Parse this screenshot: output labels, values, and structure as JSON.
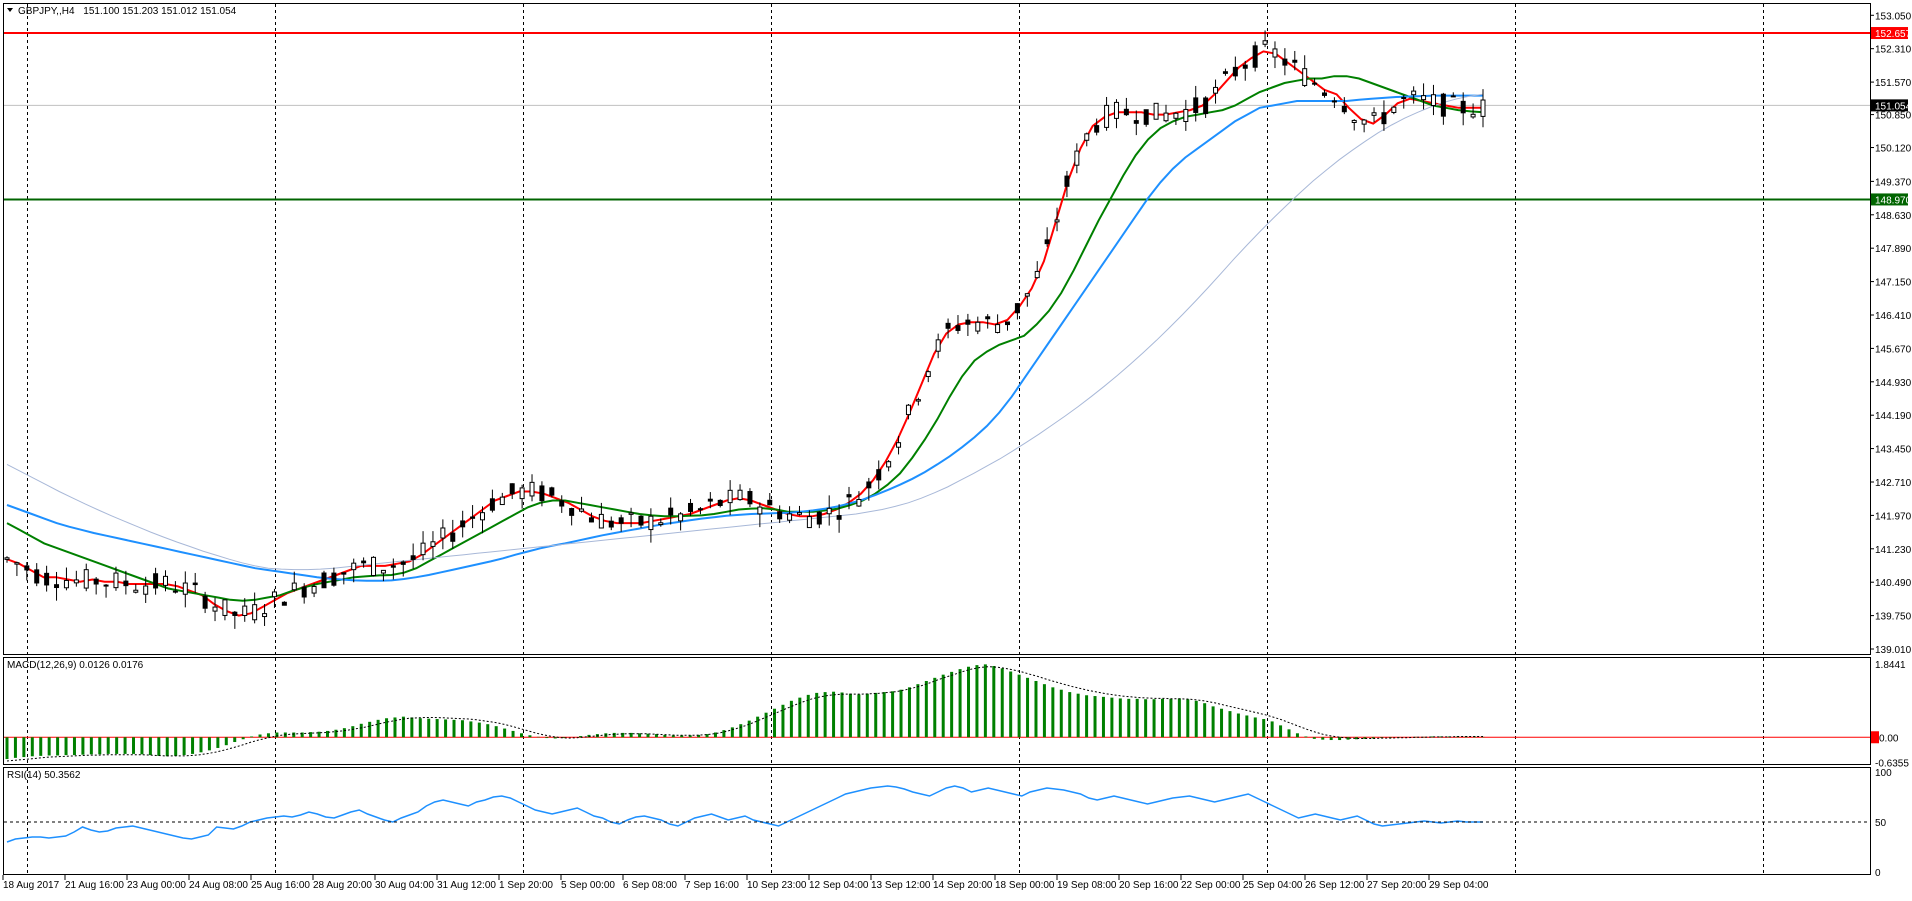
{
  "chart_data": {
    "type": "candlestick",
    "symbol_header": "GBPJPY,,H4",
    "ohlc_text": "151.100 151.203 151.012 151.054",
    "main": {
      "y_ticks": [
        "153.050",
        "152.310",
        "151.570",
        "150.850",
        "150.120",
        "149.370",
        "148.630",
        "147.890",
        "147.150",
        "146.410",
        "145.670",
        "144.930",
        "144.190",
        "143.450",
        "142.710",
        "141.970",
        "141.230",
        "140.490",
        "139.750",
        "139.010"
      ],
      "ylim": [
        139.01,
        153.3
      ],
      "levels": [
        {
          "label": "152.657",
          "value": 152.657,
          "color": "#ff0000"
        },
        {
          "label": "148.970",
          "value": 148.97,
          "color": "#006400"
        }
      ],
      "current_price": {
        "label": "151.054",
        "value": 151.054,
        "color": "#000000"
      },
      "candles": [],
      "ma_lines": [
        {
          "color": "#ff0000",
          "values": [
            141.0,
            140.9,
            140.75,
            140.6,
            140.6,
            140.55,
            140.5,
            140.55,
            140.5,
            140.5,
            140.45,
            140.45,
            140.45,
            140.45,
            140.4,
            140.3,
            140.2,
            140.0,
            139.85,
            139.75,
            139.8,
            139.95,
            140.1,
            140.25,
            140.35,
            140.45,
            140.55,
            140.65,
            140.75,
            140.85,
            140.85,
            140.85,
            140.9,
            140.95,
            141.1,
            141.3,
            141.5,
            141.7,
            141.9,
            142.1,
            142.3,
            142.4,
            142.5,
            142.5,
            142.45,
            142.35,
            142.25,
            142.1,
            141.95,
            141.85,
            141.8,
            141.8,
            141.8,
            141.85,
            141.9,
            141.95,
            142.0,
            142.1,
            142.2,
            142.3,
            142.35,
            142.3,
            142.2,
            142.1,
            142.0,
            141.95,
            141.95,
            142.0,
            142.1,
            142.25,
            142.45,
            142.75,
            143.15,
            143.65,
            144.25,
            144.9,
            145.55,
            146.0,
            146.2,
            146.25,
            146.25,
            146.2,
            146.3,
            146.6,
            147.0,
            147.6,
            148.5,
            149.4,
            150.1,
            150.6,
            150.8,
            150.9,
            150.9,
            150.9,
            150.85,
            150.85,
            150.9,
            150.95,
            151.05,
            151.3,
            151.6,
            151.9,
            152.1,
            152.25,
            152.2,
            152.0,
            151.8,
            151.6,
            151.4,
            151.3,
            151.0,
            150.75,
            150.65,
            150.85,
            151.1,
            151.2,
            151.15,
            151.1,
            151.05,
            151.0,
            151.0,
            151.0
          ]
        },
        {
          "color": "#008000",
          "values": [
            141.8,
            141.65,
            141.5,
            141.35,
            141.25,
            141.15,
            141.05,
            140.95,
            140.85,
            140.75,
            140.65,
            140.55,
            140.45,
            140.35,
            140.3,
            140.25,
            140.2,
            140.15,
            140.1,
            140.08,
            140.1,
            140.15,
            140.2,
            140.3,
            140.38,
            140.45,
            140.5,
            140.55,
            140.6,
            140.62,
            140.64,
            140.65,
            140.7,
            140.8,
            140.95,
            141.1,
            141.25,
            141.4,
            141.55,
            141.7,
            141.85,
            142.0,
            142.15,
            142.25,
            142.3,
            142.3,
            142.25,
            142.2,
            142.15,
            142.1,
            142.05,
            142.0,
            141.97,
            141.95,
            141.95,
            141.96,
            141.97,
            142.0,
            142.05,
            142.1,
            142.12,
            142.13,
            142.1,
            142.05,
            142.05,
            142.05,
            142.08,
            142.12,
            142.2,
            142.3,
            142.45,
            142.65,
            142.9,
            143.25,
            143.65,
            144.1,
            144.6,
            145.05,
            145.4,
            145.6,
            145.75,
            145.85,
            145.95,
            146.2,
            146.5,
            146.9,
            147.4,
            147.95,
            148.5,
            149.0,
            149.5,
            149.95,
            150.3,
            150.55,
            150.7,
            150.8,
            150.85,
            150.9,
            150.95,
            151.05,
            151.2,
            151.35,
            151.45,
            151.55,
            151.6,
            151.65,
            151.65,
            151.7,
            151.7,
            151.65,
            151.55,
            151.45,
            151.35,
            151.25,
            151.15,
            151.05,
            151.0,
            150.95,
            150.92,
            150.9
          ]
        },
        {
          "color": "#1e90ff",
          "values": [
            142.2,
            142.1,
            142.0,
            141.9,
            141.8,
            141.72,
            141.65,
            141.58,
            141.52,
            141.46,
            141.4,
            141.34,
            141.28,
            141.22,
            141.16,
            141.1,
            141.04,
            140.98,
            140.92,
            140.86,
            140.8,
            140.76,
            140.72,
            140.68,
            140.64,
            140.6,
            140.57,
            140.55,
            140.53,
            140.52,
            140.52,
            140.53,
            140.56,
            140.6,
            140.65,
            140.71,
            140.77,
            140.83,
            140.89,
            140.95,
            141.02,
            141.1,
            141.17,
            141.24,
            141.3,
            141.35,
            141.41,
            141.47,
            141.53,
            141.58,
            141.63,
            141.68,
            141.73,
            141.78,
            141.82,
            141.86,
            141.9,
            141.93,
            141.96,
            141.98,
            142.0,
            142.01,
            142.02,
            142.03,
            142.05,
            142.08,
            142.12,
            142.17,
            142.24,
            142.32,
            142.42,
            142.53,
            142.65,
            142.78,
            142.93,
            143.1,
            143.28,
            143.48,
            143.7,
            143.95,
            144.25,
            144.6,
            145.0,
            145.4,
            145.8,
            146.2,
            146.6,
            147.0,
            147.4,
            147.8,
            148.2,
            148.6,
            149.0,
            149.35,
            149.65,
            149.9,
            150.1,
            150.3,
            150.5,
            150.7,
            150.85,
            151.0,
            151.05,
            151.1,
            151.15,
            151.15,
            151.15,
            151.15,
            151.15,
            151.18,
            151.2,
            151.22,
            151.24,
            151.25,
            151.26,
            151.27,
            151.27,
            151.27,
            151.27,
            151.27
          ]
        },
        {
          "color": "#a8b8d8",
          "values": [
            143.1,
            142.95,
            142.8,
            142.65,
            142.5,
            142.36,
            142.22,
            142.09,
            141.96,
            141.84,
            141.72,
            141.6,
            141.49,
            141.38,
            141.28,
            141.18,
            141.09,
            141.0,
            140.92,
            140.85,
            140.8,
            140.78,
            140.77,
            140.77,
            140.78,
            140.8,
            140.83,
            140.86,
            140.89,
            140.92,
            140.95,
            140.98,
            141.01,
            141.04,
            141.07,
            141.1,
            141.13,
            141.16,
            141.19,
            141.22,
            141.25,
            141.28,
            141.31,
            141.34,
            141.37,
            141.4,
            141.43,
            141.46,
            141.49,
            141.52,
            141.55,
            141.58,
            141.61,
            141.64,
            141.67,
            141.7,
            141.73,
            141.76,
            141.79,
            141.82,
            141.85,
            141.88,
            141.91,
            141.94,
            141.97,
            142.0,
            142.05,
            142.1,
            142.17,
            142.25,
            142.35,
            142.47,
            142.6,
            142.75,
            142.9,
            143.06,
            143.22,
            143.4,
            143.58,
            143.77,
            143.97,
            144.17,
            144.38,
            144.6,
            144.83,
            145.07,
            145.32,
            145.58,
            145.85,
            146.13,
            146.42,
            146.72,
            147.03,
            147.35,
            147.67,
            147.98,
            148.28,
            148.57,
            148.85,
            149.12,
            149.38,
            149.62,
            149.85,
            150.06,
            150.26,
            150.45,
            150.62,
            150.77,
            150.9,
            151.02,
            151.12,
            151.2,
            151.26,
            151.3
          ]
        }
      ]
    },
    "macd": {
      "label": "MACD(12,26,9) 0.0126 0.0176",
      "y_ticks": [
        "1.8441",
        "0.00",
        "-0.6355"
      ],
      "ylim": [
        -0.7,
        1.95
      ],
      "histogram": [
        -0.55,
        -0.52,
        -0.5,
        -0.48,
        -0.47,
        -0.46,
        -0.46,
        -0.45,
        -0.45,
        -0.44,
        -0.43,
        -0.43,
        -0.42,
        -0.42,
        -0.42,
        -0.42,
        -0.43,
        -0.45,
        -0.47,
        -0.48,
        -0.47,
        -0.45,
        -0.42,
        -0.38,
        -0.33,
        -0.27,
        -0.2,
        -0.12,
        -0.05,
        0.02,
        0.07,
        0.1,
        0.12,
        0.12,
        0.12,
        0.12,
        0.13,
        0.14,
        0.16,
        0.19,
        0.23,
        0.28,
        0.34,
        0.39,
        0.44,
        0.48,
        0.5,
        0.52,
        0.5,
        0.48,
        0.47,
        0.46,
        0.45,
        0.44,
        0.43,
        0.4,
        0.37,
        0.33,
        0.28,
        0.22,
        0.16,
        0.1,
        0.05,
        0.01,
        -0.02,
        -0.03,
        -0.02,
        0.0,
        0.03,
        0.06,
        0.08,
        0.1,
        0.11,
        0.11,
        0.11,
        0.1,
        0.09,
        0.08,
        0.06,
        0.05,
        0.05,
        0.05,
        0.06,
        0.08,
        0.12,
        0.18,
        0.25,
        0.33,
        0.42,
        0.52,
        0.62,
        0.72,
        0.82,
        0.92,
        1.0,
        1.07,
        1.12,
        1.14,
        1.15,
        1.13,
        1.1,
        1.08,
        1.1,
        1.12,
        1.14,
        1.16,
        1.2,
        1.26,
        1.34,
        1.42,
        1.5,
        1.58,
        1.65,
        1.72,
        1.78,
        1.82,
        1.84,
        1.8,
        1.74,
        1.66,
        1.58,
        1.5,
        1.42,
        1.34,
        1.26,
        1.2,
        1.14,
        1.1,
        1.06,
        1.04,
        1.02,
        1.0,
        0.98,
        0.97,
        0.97,
        0.96,
        0.96,
        0.97,
        0.97,
        0.98,
        0.96,
        0.92,
        0.86,
        0.78,
        0.72,
        0.66,
        0.6,
        0.55,
        0.5,
        0.46,
        0.4,
        0.3,
        0.2,
        0.1,
        0.02,
        -0.04,
        -0.06,
        -0.07,
        -0.07,
        -0.06,
        -0.05,
        -0.04,
        -0.03,
        -0.02,
        -0.02,
        -0.01,
        0.0,
        0.01,
        0.01,
        0.02,
        0.02,
        0.02,
        0.02,
        0.02,
        0.02,
        0.01
      ],
      "signal": [
        -0.6,
        -0.58,
        -0.56,
        -0.54,
        -0.52,
        -0.5,
        -0.49,
        -0.48,
        -0.47,
        -0.46,
        -0.45,
        -0.45,
        -0.44,
        -0.44,
        -0.44,
        -0.44,
        -0.44,
        -0.45,
        -0.46,
        -0.47,
        -0.47,
        -0.47,
        -0.46,
        -0.44,
        -0.41,
        -0.37,
        -0.32,
        -0.26,
        -0.2,
        -0.13,
        -0.07,
        -0.02,
        0.03,
        0.06,
        0.08,
        0.09,
        0.1,
        0.11,
        0.12,
        0.14,
        0.16,
        0.19,
        0.23,
        0.27,
        0.32,
        0.37,
        0.41,
        0.45,
        0.48,
        0.49,
        0.5,
        0.5,
        0.49,
        0.48,
        0.47,
        0.46,
        0.44,
        0.41,
        0.38,
        0.34,
        0.29,
        0.23,
        0.17,
        0.11,
        0.06,
        0.02,
        -0.01,
        -0.02,
        -0.01,
        0.01,
        0.03,
        0.05,
        0.07,
        0.08,
        0.09,
        0.09,
        0.09,
        0.08,
        0.07,
        0.06,
        0.05,
        0.05,
        0.05,
        0.06,
        0.08,
        0.11,
        0.16,
        0.22,
        0.29,
        0.37,
        0.46,
        0.55,
        0.64,
        0.73,
        0.82,
        0.9,
        0.97,
        1.02,
        1.06,
        1.08,
        1.09,
        1.09,
        1.09,
        1.1,
        1.11,
        1.13,
        1.15,
        1.19,
        1.24,
        1.3,
        1.37,
        1.45,
        1.52,
        1.59,
        1.66,
        1.72,
        1.76,
        1.78,
        1.77,
        1.74,
        1.7,
        1.65,
        1.59,
        1.53,
        1.46,
        1.4,
        1.34,
        1.28,
        1.23,
        1.18,
        1.14,
        1.1,
        1.07,
        1.04,
        1.02,
        1.0,
        0.99,
        0.98,
        0.98,
        0.97,
        0.97,
        0.96,
        0.94,
        0.91,
        0.87,
        0.82,
        0.77,
        0.72,
        0.67,
        0.62,
        0.57,
        0.51,
        0.44,
        0.36,
        0.28,
        0.2,
        0.13,
        0.07,
        0.03,
        0.0,
        -0.02,
        -0.03,
        -0.03,
        -0.03,
        -0.02,
        -0.02,
        -0.01,
        -0.01,
        0.0,
        0.0,
        0.01,
        0.01,
        0.01,
        0.02,
        0.02,
        0.02,
        0.02
      ]
    },
    "rsi": {
      "label": "RSI(14) 50.3562",
      "y_ticks": [
        "100",
        "50",
        "0"
      ],
      "ylim": [
        0,
        100
      ],
      "level": 50,
      "values": [
        30,
        33,
        34,
        35,
        35,
        34,
        35,
        36,
        40,
        45,
        42,
        40,
        41,
        44,
        45,
        46,
        44,
        42,
        40,
        38,
        36,
        34,
        33,
        35,
        37,
        45,
        44,
        43,
        46,
        50,
        52,
        54,
        55,
        56,
        55,
        57,
        60,
        58,
        55,
        54,
        57,
        60,
        62,
        58,
        55,
        52,
        50,
        54,
        57,
        60,
        66,
        70,
        72,
        70,
        68,
        66,
        70,
        72,
        75,
        76,
        74,
        70,
        66,
        62,
        60,
        58,
        60,
        62,
        64,
        60,
        56,
        54,
        50,
        48,
        52,
        55,
        56,
        54,
        52,
        48,
        46,
        50,
        54,
        56,
        58,
        55,
        52,
        54,
        56,
        52,
        50,
        48,
        46,
        50,
        54,
        58,
        62,
        66,
        70,
        74,
        78,
        80,
        82,
        84,
        85,
        86,
        85,
        83,
        80,
        78,
        76,
        80,
        84,
        86,
        84,
        80,
        82,
        84,
        82,
        80,
        78,
        76,
        80,
        82,
        84,
        83,
        82,
        80,
        78,
        74,
        72,
        74,
        76,
        74,
        72,
        70,
        68,
        70,
        72,
        74,
        75,
        76,
        74,
        72,
        70,
        72,
        74,
        76,
        78,
        74,
        70,
        66,
        62,
        58,
        54,
        56,
        58,
        56,
        54,
        52,
        54,
        56,
        52,
        48,
        46,
        47,
        48,
        49,
        50,
        51,
        50,
        49,
        50,
        51,
        50,
        50,
        50
      ]
    },
    "x_labels": [
      "18 Aug 2017",
      "21 Aug 16:00",
      "23 Aug 00:00",
      "24 Aug 08:00",
      "25 Aug 16:00",
      "28 Aug 20:00",
      "30 Aug 04:00",
      "31 Aug 12:00",
      "1 Sep 20:00",
      "5 Sep 00:00",
      "6 Sep 08:00",
      "7 Sep 16:00",
      "10 Sep 23:00",
      "12 Sep 04:00",
      "13 Sep 12:00",
      "14 Sep 20:00",
      "18 Sep 00:00",
      "19 Sep 08:00",
      "20 Sep 16:00",
      "22 Sep 00:00",
      "25 Sep 04:00",
      "26 Sep 12:00",
      "27 Sep 20:00",
      "29 Sep 04:00"
    ]
  }
}
